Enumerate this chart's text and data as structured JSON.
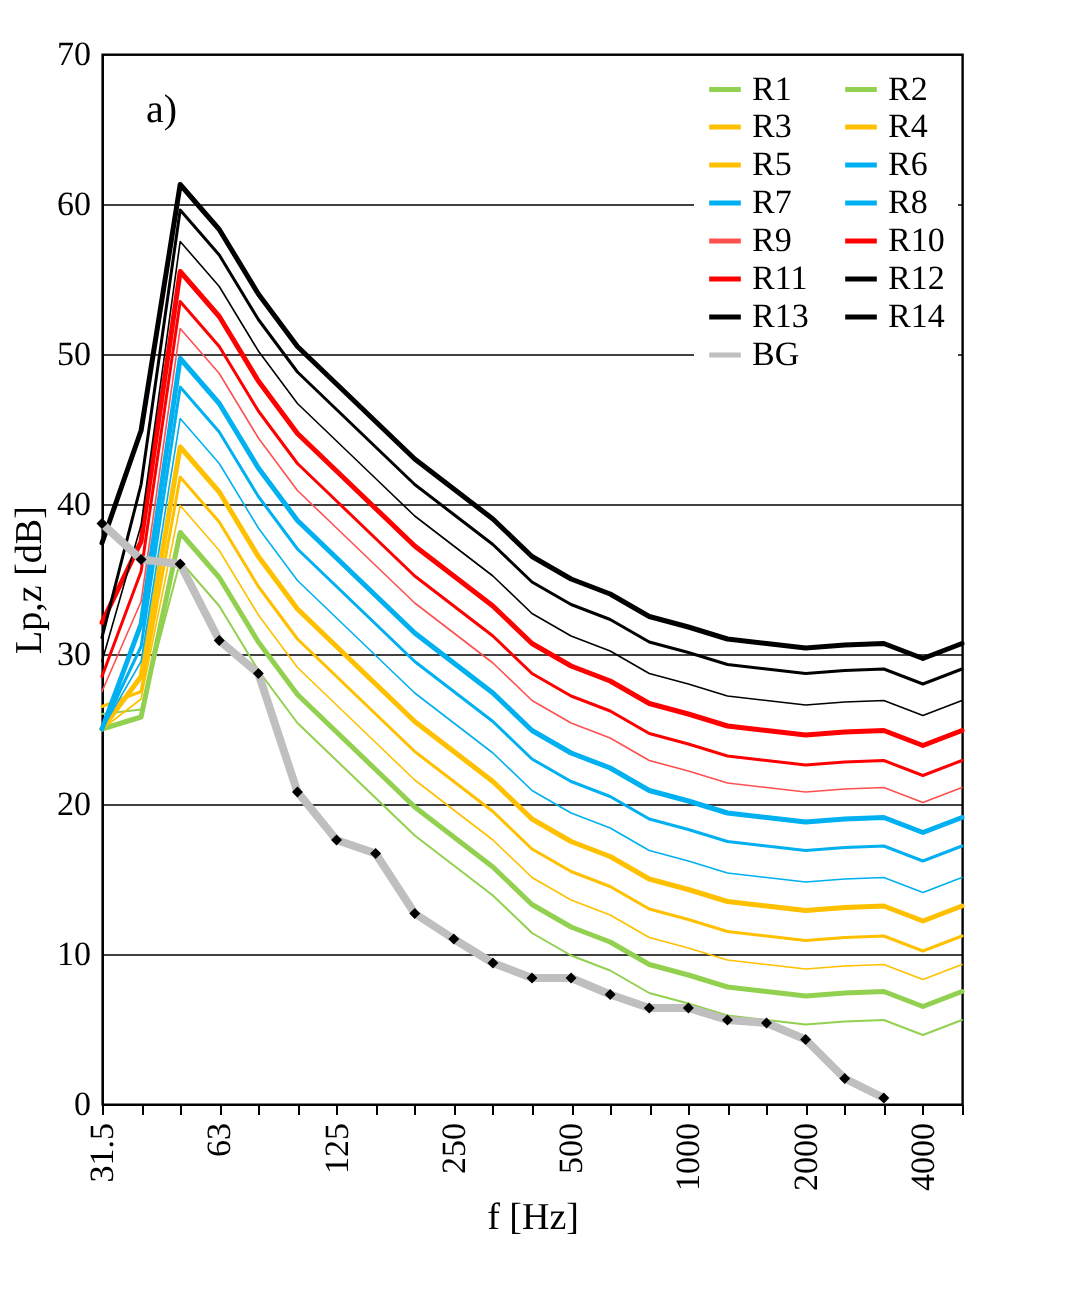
{
  "chart_data": {
    "type": "line",
    "xlabel": "f [Hz]",
    "ylabel": "Lp,z [dB]",
    "categories": [
      "31.5",
      null,
      null,
      "63",
      null,
      null,
      "125",
      null,
      null,
      "250",
      null,
      null,
      "500",
      null,
      null,
      "1000",
      null,
      null,
      "2000",
      null,
      null,
      "4000",
      null
    ],
    "ylim": [
      0,
      70
    ],
    "yticks": [
      0,
      10,
      20,
      30,
      40,
      50,
      60,
      70
    ],
    "grid": "y",
    "legend": "top right",
    "annotations": [
      "a)"
    ],
    "series": [
      {
        "name": "R1",
        "color": "#92d050",
        "values": [
          26,
          26.3,
          36.2,
          33.2,
          28.9,
          25.4,
          22.9,
          20.4,
          17.9,
          15.9,
          13.9,
          11.4,
          9.9,
          8.9,
          7.4,
          6.7,
          5.9,
          5.6,
          5.3,
          5.5,
          5.6,
          4.6,
          5.6
        ]
      },
      {
        "name": "R2",
        "color": "#92d050",
        "values": [
          25,
          25.8,
          38.1,
          35.1,
          30.8,
          27.3,
          24.8,
          22.3,
          19.8,
          17.8,
          15.8,
          13.3,
          11.8,
          10.8,
          9.3,
          8.6,
          7.8,
          7.5,
          7.2,
          7.4,
          7.5,
          6.5,
          7.5
        ]
      },
      {
        "name": "R3",
        "color": "#ffc000",
        "values": [
          25,
          27,
          39.9,
          36.9,
          32.6,
          29.1,
          26.6,
          24.1,
          21.6,
          19.6,
          17.6,
          15.1,
          13.6,
          12.6,
          11.1,
          10.4,
          9.6,
          9.3,
          9.0,
          9.2,
          9.3,
          8.3,
          9.3
        ]
      },
      {
        "name": "R4",
        "color": "#ffc000",
        "values": [
          26.5,
          27.5,
          41.8,
          38.8,
          34.5,
          31.0,
          28.5,
          26.0,
          23.5,
          21.5,
          19.5,
          17.0,
          15.5,
          14.5,
          13.0,
          12.3,
          11.5,
          11.2,
          10.9,
          11.1,
          11.2,
          10.2,
          11.2
        ]
      },
      {
        "name": "R5",
        "color": "#ffc000",
        "values": [
          25,
          28.5,
          43.8,
          40.8,
          36.5,
          33.0,
          30.5,
          28.0,
          25.5,
          23.5,
          21.5,
          19.0,
          17.5,
          16.5,
          15.0,
          14.3,
          13.5,
          13.2,
          12.9,
          13.1,
          13.2,
          12.2,
          13.2
        ]
      },
      {
        "name": "R6",
        "color": "#00b0f0",
        "values": [
          25,
          29.5,
          45.7,
          42.7,
          38.4,
          34.9,
          32.4,
          29.9,
          27.4,
          25.4,
          23.4,
          20.9,
          19.4,
          18.4,
          16.9,
          16.2,
          15.4,
          15.1,
          14.8,
          15.0,
          15.1,
          14.1,
          15.1
        ]
      },
      {
        "name": "R7",
        "color": "#00b0f0",
        "values": [
          25,
          30.5,
          47.8,
          44.8,
          40.5,
          37.0,
          34.5,
          32.0,
          29.5,
          27.5,
          25.5,
          23.0,
          21.5,
          20.5,
          19.0,
          18.3,
          17.5,
          17.2,
          16.9,
          17.1,
          17.2,
          16.2,
          17.2
        ]
      },
      {
        "name": "R8",
        "color": "#00b0f0",
        "values": [
          25,
          32,
          49.7,
          46.7,
          42.4,
          38.9,
          36.4,
          33.9,
          31.4,
          29.4,
          27.4,
          24.9,
          23.4,
          22.4,
          20.9,
          20.2,
          19.4,
          19.1,
          18.8,
          19.0,
          19.1,
          18.1,
          19.1
        ]
      },
      {
        "name": "R9",
        "color": "#ff5050",
        "values": [
          27.5,
          33.5,
          51.7,
          48.7,
          44.4,
          40.9,
          38.4,
          35.9,
          33.4,
          31.4,
          29.4,
          26.9,
          25.4,
          24.4,
          22.9,
          22.2,
          21.4,
          21.1,
          20.8,
          21.0,
          21.1,
          20.1,
          21.1
        ]
      },
      {
        "name": "R10",
        "color": "#ff0000",
        "values": [
          28.5,
          35.5,
          53.5,
          50.5,
          46.2,
          42.7,
          40.2,
          37.7,
          35.2,
          33.2,
          31.2,
          28.7,
          27.2,
          26.2,
          24.7,
          24.0,
          23.2,
          22.9,
          22.6,
          22.8,
          22.9,
          21.9,
          22.9
        ]
      },
      {
        "name": "R11",
        "color": "#ff0000",
        "values": [
          32.1,
          37.5,
          55.5,
          52.5,
          48.2,
          44.7,
          42.2,
          39.7,
          37.2,
          35.2,
          33.2,
          30.7,
          29.2,
          28.2,
          26.7,
          26.0,
          25.2,
          24.9,
          24.6,
          24.8,
          24.9,
          23.9,
          24.9
        ]
      },
      {
        "name": "R12",
        "color": "#000000",
        "values": [
          29.5,
          38.6,
          57.5,
          54.5,
          50.2,
          46.7,
          44.2,
          41.7,
          39.2,
          37.2,
          35.2,
          32.7,
          31.2,
          30.2,
          28.7,
          28.0,
          27.2,
          26.9,
          26.6,
          26.8,
          26.9,
          25.9,
          26.9
        ]
      },
      {
        "name": "R13",
        "color": "#000000",
        "values": [
          31.1,
          41.3,
          59.6,
          56.6,
          52.3,
          48.8,
          46.3,
          43.8,
          41.3,
          39.3,
          37.3,
          34.8,
          33.3,
          32.3,
          30.8,
          30.1,
          29.3,
          29.0,
          28.7,
          28.9,
          29.0,
          28.0,
          29.0
        ]
      },
      {
        "name": "R14",
        "color": "#000000",
        "values": [
          37.4,
          44.9,
          61.3,
          58.3,
          54.0,
          50.5,
          48.0,
          45.5,
          43.0,
          41.0,
          39.0,
          36.5,
          35.0,
          34.0,
          32.5,
          31.8,
          31.0,
          30.7,
          30.4,
          30.6,
          30.7,
          29.7,
          30.7
        ]
      },
      {
        "name": "BG",
        "color": "#bfbfbf",
        "marker": "diamond",
        "values": [
          38.7,
          36.3,
          36.0,
          30.9,
          28.7,
          20.8,
          17.6,
          16.7,
          12.7,
          11.0,
          9.4,
          8.4,
          8.4,
          7.3,
          6.4,
          6.4,
          5.6,
          5.4,
          4.3,
          1.7,
          0.4,
          null,
          null
        ]
      }
    ]
  }
}
